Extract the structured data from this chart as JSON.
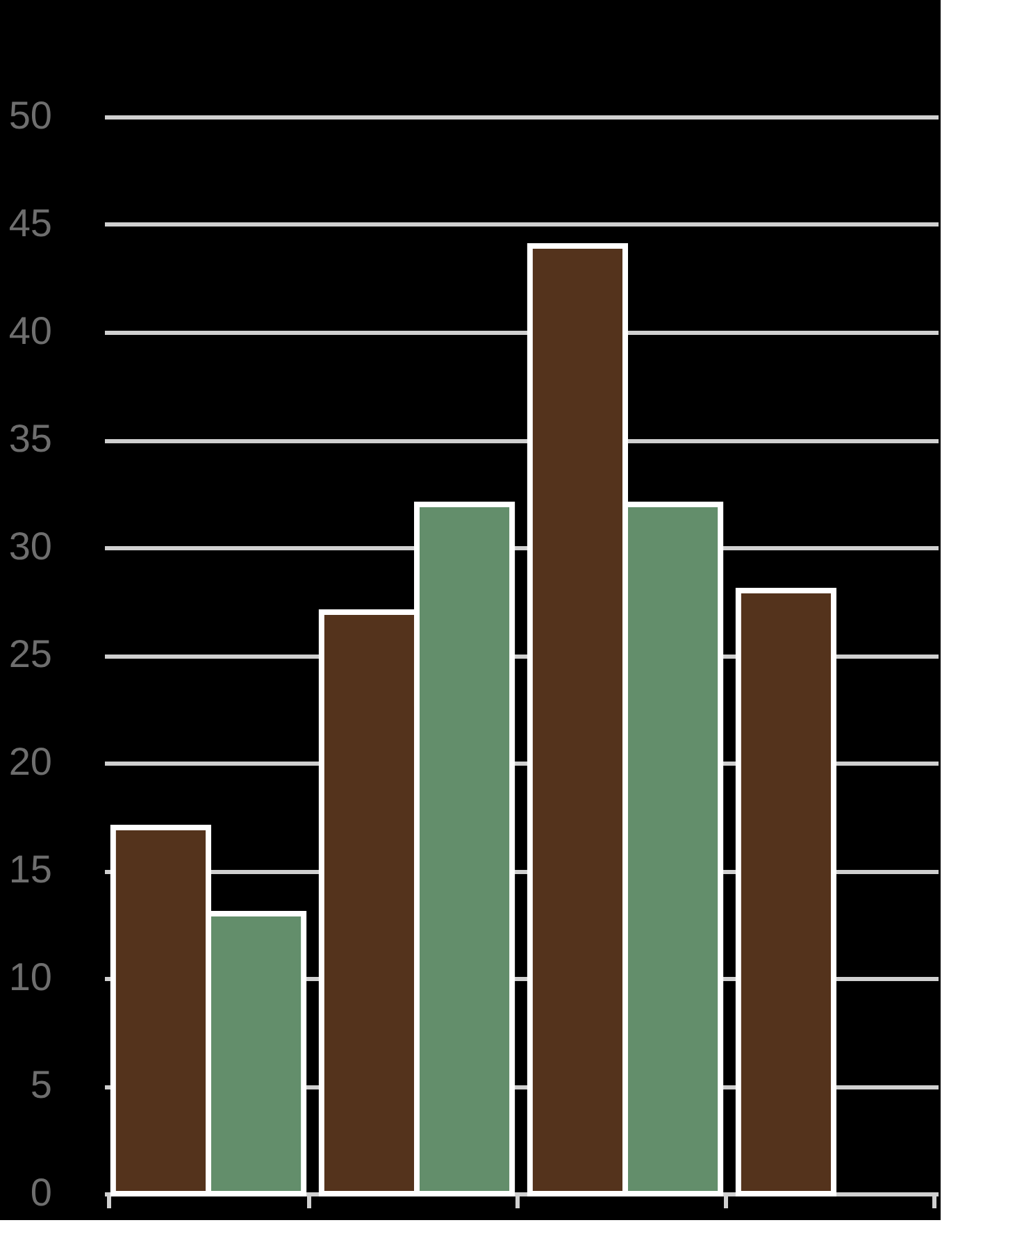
{
  "chart_data": {
    "type": "bar",
    "categories": [
      null,
      null,
      null,
      null
    ],
    "series": [
      {
        "color": "#54331c",
        "values": [
          17,
          27,
          44,
          28
        ]
      },
      {
        "color": "#638e6b",
        "values": [
          13,
          32,
          32,
          null
        ]
      }
    ],
    "ylim": [
      0,
      50
    ],
    "yticks": [
      0,
      5,
      10,
      15,
      20,
      25,
      30,
      35,
      40,
      45,
      50
    ],
    "grid": "y",
    "legend": false,
    "tick_labels": "y"
  }
}
